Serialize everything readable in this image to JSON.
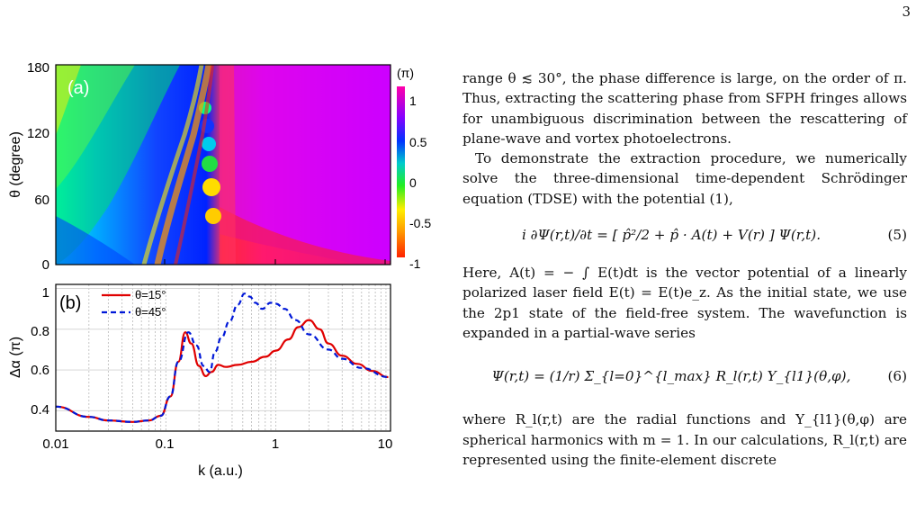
{
  "page_number": "3",
  "text": {
    "p1": "range θ ≲ 30°, the phase difference is large, on the order of π. Thus, extracting the scattering phase from SFPH fringes allows for unambiguous discrimination between the rescattering of plane-wave and vortex photoelectrons.",
    "p2": "To demonstrate the extraction procedure, we numerically solve the three-dimensional time-dependent Schrödinger equation (TDSE) with the potential (1),",
    "eq5": "i ∂Ψ(r,t)/∂t = [ p̂²/2 + p̂ · A(t) + V(r) ] Ψ(r,t).",
    "eq5_num": "(5)",
    "p3": "Here, A(t) = − ∫ E(t)dt is the vector potential of a linearly polarized laser field E(t) = E(t)e_z. As the initial state, we use the 2p1 state of the field-free system. The wavefunction is expanded in a partial-wave series",
    "eq6": "Ψ(r,t) = (1/r) Σ_{l=0}^{l_max} R_l(r,t) Y_{l1}(θ,φ),",
    "eq6_num": "(6)",
    "p4": "where R_l(r,t) are the radial functions and Y_{l1}(θ,φ) are spherical harmonics with m = 1. In our calculations, R_l(r,t) are represented using the finite-element discrete"
  },
  "figure": {
    "panel_a": {
      "label": "(a)",
      "ylabel": "θ (degree)",
      "yticks": [
        "180",
        "120",
        "60",
        "0"
      ],
      "colorbar_unit": "(π)",
      "colorbar_ticks": [
        "1",
        "0.5",
        "0",
        "-0.5",
        "-1"
      ]
    },
    "panel_b": {
      "label": "(b)",
      "ylabel": "Δα (π)",
      "yticks": [
        "1",
        "0.8",
        "0.6",
        "0.4"
      ],
      "xticks": [
        "0.01",
        "0.1",
        "1",
        "10"
      ],
      "xlabel": "k (a.u.)",
      "legend": [
        "θ=15°",
        "θ=45°"
      ]
    }
  },
  "chart_data": {
    "type": "line",
    "xscale": "log",
    "xlim": [
      0.01,
      11
    ],
    "ylim": [
      0.3,
      1.02
    ],
    "xlabel": "k (a.u.)",
    "ylabel": "Δα (π)",
    "series": [
      {
        "name": "θ=15°",
        "color": "#e00000",
        "style": "solid",
        "x": [
          0.01,
          0.02,
          0.03,
          0.05,
          0.07,
          0.09,
          0.11,
          0.13,
          0.15,
          0.17,
          0.2,
          0.23,
          0.26,
          0.3,
          0.35,
          0.45,
          0.6,
          0.8,
          1.0,
          1.3,
          1.6,
          2.0,
          2.5,
          3.0,
          4.0,
          5.5,
          7.5,
          10.5
        ],
        "y": [
          0.42,
          0.37,
          0.352,
          0.345,
          0.352,
          0.375,
          0.47,
          0.64,
          0.785,
          0.73,
          0.62,
          0.57,
          0.59,
          0.625,
          0.615,
          0.625,
          0.64,
          0.665,
          0.695,
          0.75,
          0.81,
          0.845,
          0.8,
          0.73,
          0.67,
          0.63,
          0.595,
          0.565
        ]
      },
      {
        "name": "θ=45°",
        "color": "#0018d8",
        "style": "dashed",
        "x": [
          0.01,
          0.02,
          0.03,
          0.05,
          0.07,
          0.09,
          0.11,
          0.13,
          0.16,
          0.19,
          0.22,
          0.25,
          0.28,
          0.32,
          0.38,
          0.45,
          0.52,
          0.58,
          0.65,
          0.75,
          0.9,
          1.0,
          1.2,
          1.5,
          2.0,
          3.0,
          4.0,
          6.0,
          10.5
        ],
        "y": [
          0.42,
          0.37,
          0.352,
          0.345,
          0.352,
          0.375,
          0.47,
          0.64,
          0.785,
          0.72,
          0.62,
          0.59,
          0.69,
          0.76,
          0.84,
          0.92,
          0.975,
          0.96,
          0.93,
          0.9,
          0.93,
          0.925,
          0.9,
          0.845,
          0.775,
          0.7,
          0.655,
          0.61,
          0.565
        ]
      }
    ]
  },
  "heatmap_data": {
    "type": "heatmap",
    "xscale": "log",
    "xlim": [
      0.01,
      11
    ],
    "ylim": [
      0,
      180
    ],
    "zlim": [
      -1,
      1
    ],
    "ylabel": "θ (degree)",
    "colorbar_unit": "(π)"
  }
}
